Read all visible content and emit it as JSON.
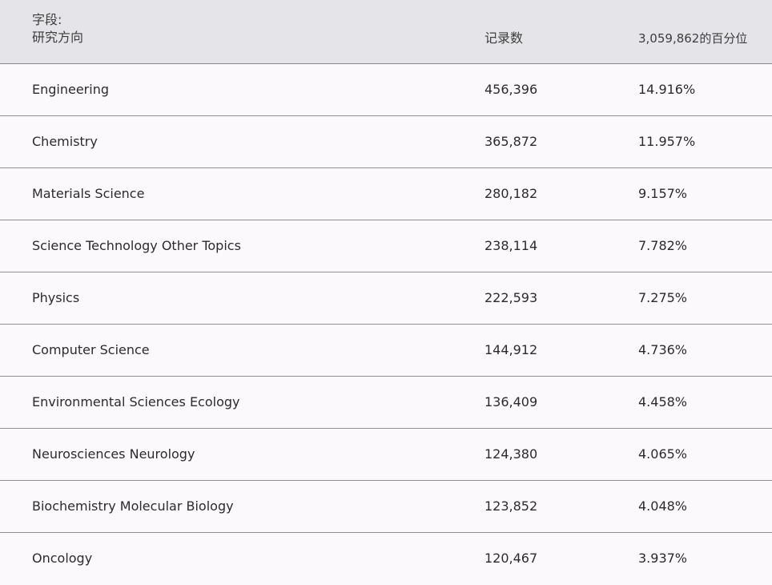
{
  "header": {
    "field_label_line1": "字段:",
    "field_label_line2": "研究方向",
    "count_label": "记录数",
    "percent_label": "3,059,862的百分位"
  },
  "rows": [
    {
      "field": "Engineering",
      "count": "456,396",
      "percent": "14.916%"
    },
    {
      "field": "Chemistry",
      "count": "365,872",
      "percent": "11.957%"
    },
    {
      "field": "Materials Science",
      "count": "280,182",
      "percent": "9.157%"
    },
    {
      "field": "Science Technology Other Topics",
      "count": "238,114",
      "percent": "7.782%"
    },
    {
      "field": "Physics",
      "count": "222,593",
      "percent": "7.275%"
    },
    {
      "field": "Computer Science",
      "count": "144,912",
      "percent": "4.736%"
    },
    {
      "field": "Environmental Sciences Ecology",
      "count": "136,409",
      "percent": "4.458%"
    },
    {
      "field": "Neurosciences Neurology",
      "count": "124,380",
      "percent": "4.065%"
    },
    {
      "field": "Biochemistry Molecular Biology",
      "count": "123,852",
      "percent": "4.048%"
    },
    {
      "field": "Oncology",
      "count": "120,467",
      "percent": "3.937%"
    }
  ],
  "colors": {
    "header_bg": "#e5e4e9",
    "row_bg": "#fcf9fd",
    "divider": "#8f8f8f",
    "text": "#2b2b2b"
  }
}
